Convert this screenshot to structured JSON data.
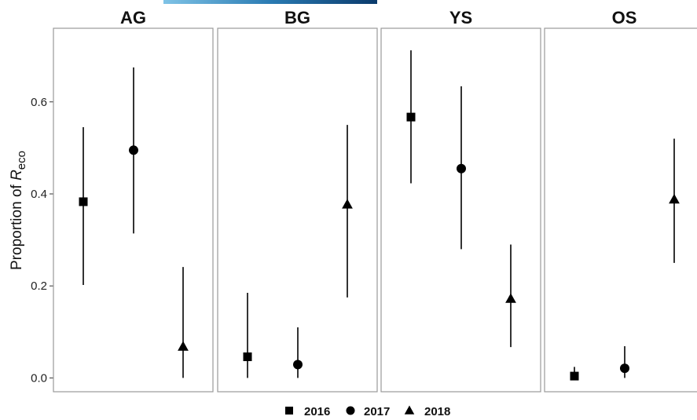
{
  "chart_data": {
    "type": "scatter",
    "ylabel_prefix": "Proportion of ",
    "ylabel_italic": "R",
    "ylabel_subscript": "eco",
    "ylim": [
      -0.03,
      0.76
    ],
    "yticks": [
      0.0,
      0.2,
      0.4,
      0.6
    ],
    "ytick_labels": [
      "0.0",
      "0.2",
      "0.4",
      "0.6"
    ],
    "grid": false,
    "legend_position": "bottom",
    "years": [
      "2016",
      "2017",
      "2018"
    ],
    "markers": [
      "square",
      "circle",
      "triangle"
    ],
    "colors": {
      "point": "#000000",
      "panel_border": "#9a9a9a"
    },
    "panels": [
      {
        "name": "AG",
        "points": [
          {
            "year": "2016",
            "y": 0.383,
            "lo": 0.202,
            "hi": 0.545
          },
          {
            "year": "2017",
            "y": 0.495,
            "lo": 0.314,
            "hi": 0.675
          },
          {
            "year": "2018",
            "y": 0.068,
            "lo": 0.0,
            "hi": 0.241
          }
        ]
      },
      {
        "name": "BG",
        "points": [
          {
            "year": "2016",
            "y": 0.046,
            "lo": 0.0,
            "hi": 0.185
          },
          {
            "year": "2017",
            "y": 0.029,
            "lo": 0.0,
            "hi": 0.11
          },
          {
            "year": "2018",
            "y": 0.377,
            "lo": 0.175,
            "hi": 0.55
          }
        ]
      },
      {
        "name": "YS",
        "points": [
          {
            "year": "2016",
            "y": 0.567,
            "lo": 0.423,
            "hi": 0.712
          },
          {
            "year": "2017",
            "y": 0.455,
            "lo": 0.28,
            "hi": 0.634
          },
          {
            "year": "2018",
            "y": 0.172,
            "lo": 0.067,
            "hi": 0.29
          }
        ]
      },
      {
        "name": "OS",
        "points": [
          {
            "year": "2016",
            "y": 0.004,
            "lo": 0.0,
            "hi": 0.024
          },
          {
            "year": "2017",
            "y": 0.021,
            "lo": 0.0,
            "hi": 0.069
          },
          {
            "year": "2018",
            "y": 0.388,
            "lo": 0.25,
            "hi": 0.52
          }
        ]
      }
    ]
  }
}
